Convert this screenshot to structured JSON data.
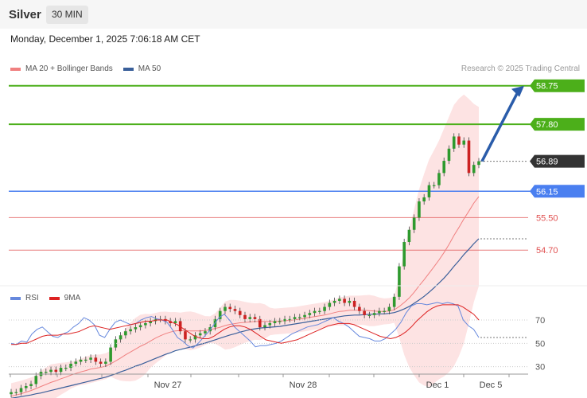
{
  "header": {
    "instrument": "Silver",
    "interval": "30 MIN"
  },
  "timestamp": "Monday, December 1, 2025 7:06:18 AM CET",
  "credit": "Research © 2025 Trading Central",
  "colors": {
    "ma20": "#f08080",
    "ma50": "#3a5f9a",
    "resistance": "#4caf1a",
    "pivot": "#4a7ff0",
    "support": "#e05050",
    "last": "#333333",
    "rsi": "#6688dd",
    "rsi_ma": "#dd2222",
    "bollinger": "#fde3e3",
    "candle_up": "#2e9a2e",
    "candle_down": "#cc2222",
    "forecast_arrow": "#2a5caa"
  },
  "chart_data": [
    {
      "type": "candlestick",
      "title": "Silver",
      "interval": "30 MIN",
      "legend": [
        {
          "name": "MA 20 + Bollinger Bands",
          "color": "#f08080"
        },
        {
          "name": "MA 50",
          "color": "#3a5f9a"
        }
      ],
      "legend_position": "top-left",
      "ylim": [
        53.9,
        59.0
      ],
      "x_ticks": [
        "Nov 27",
        "Nov 28",
        "Dec 1",
        "Dec 5"
      ],
      "levels": [
        {
          "label": "58.75",
          "value": 58.75,
          "kind": "resistance"
        },
        {
          "label": "57.80",
          "value": 57.8,
          "kind": "resistance"
        },
        {
          "label": "56.89",
          "value": 56.89,
          "kind": "last"
        },
        {
          "label": "56.15",
          "value": 56.15,
          "kind": "pivot"
        },
        {
          "label": "55.50",
          "value": 55.5,
          "kind": "support"
        },
        {
          "label": "54.70",
          "value": 54.7,
          "kind": "support"
        }
      ],
      "forecast": {
        "from": 56.89,
        "to": 58.75,
        "direction": "up"
      },
      "close_series": [
        51.2,
        51.2,
        51.3,
        51.35,
        51.4,
        51.6,
        51.7,
        51.7,
        51.75,
        51.7,
        51.8,
        51.8,
        51.9,
        51.95,
        52.0,
        52.0,
        52.05,
        51.95,
        51.9,
        51.95,
        52.3,
        52.5,
        52.6,
        52.7,
        52.75,
        52.8,
        52.85,
        52.9,
        52.95,
        53.0,
        53.0,
        52.95,
        52.9,
        52.95,
        52.7,
        52.5,
        52.5,
        52.6,
        52.65,
        52.7,
        52.8,
        53.0,
        53.2,
        53.3,
        53.25,
        53.2,
        53.1,
        53.0,
        53.05,
        53.0,
        52.8,
        52.85,
        52.9,
        52.95,
        52.95,
        53.0,
        53.0,
        53.05,
        53.05,
        53.1,
        53.15,
        53.2,
        53.2,
        53.3,
        53.4,
        53.45,
        53.5,
        53.4,
        53.45,
        53.3,
        53.2,
        53.1,
        53.1,
        53.15,
        53.2,
        53.2,
        53.3,
        53.55,
        54.3,
        54.9,
        55.2,
        55.5,
        55.9,
        56.0,
        56.3,
        56.3,
        56.6,
        56.9,
        57.2,
        57.5,
        57.3,
        57.4,
        56.6,
        56.8,
        56.89
      ],
      "ma20_series": [
        51.1,
        51.13,
        51.16,
        51.2,
        51.24,
        51.29,
        51.34,
        51.39,
        51.44,
        51.48,
        51.53,
        51.57,
        51.62,
        51.66,
        51.7,
        51.73,
        51.77,
        51.79,
        51.81,
        51.84,
        51.9,
        51.97,
        52.04,
        52.12,
        52.19,
        52.26,
        52.33,
        52.39,
        52.46,
        52.53,
        52.59,
        52.64,
        52.68,
        52.71,
        52.72,
        52.72,
        52.71,
        52.71,
        52.71,
        52.72,
        52.74,
        52.77,
        52.8,
        52.84,
        52.87,
        52.89,
        52.91,
        52.92,
        52.93,
        52.94,
        52.94,
        52.94,
        52.94,
        52.94,
        52.95,
        52.96,
        52.97,
        52.98,
        53.0,
        53.02,
        53.04,
        53.06,
        53.08,
        53.1,
        53.13,
        53.16,
        53.19,
        53.2,
        53.22,
        53.22,
        53.22,
        53.22,
        53.21,
        53.2,
        53.19,
        53.19,
        53.2,
        53.23,
        53.31,
        53.41,
        53.52,
        53.66,
        53.82,
        53.97,
        54.13,
        54.29,
        54.46,
        54.64,
        54.84,
        55.06,
        55.26,
        55.47,
        55.66,
        55.86,
        56.02
      ],
      "ma50_series": [
        51.05,
        51.07,
        51.09,
        51.11,
        51.13,
        51.16,
        51.18,
        51.21,
        51.24,
        51.27,
        51.3,
        51.33,
        51.36,
        51.39,
        51.42,
        51.45,
        51.48,
        51.51,
        51.54,
        51.57,
        51.61,
        51.65,
        51.7,
        51.74,
        51.79,
        51.84,
        51.88,
        51.93,
        51.98,
        52.03,
        52.08,
        52.13,
        52.17,
        52.22,
        52.25,
        52.28,
        52.31,
        52.34,
        52.38,
        52.41,
        52.45,
        52.49,
        52.53,
        52.57,
        52.61,
        52.64,
        52.68,
        52.71,
        52.74,
        52.76,
        52.78,
        52.79,
        52.8,
        52.81,
        52.82,
        52.84,
        52.86,
        52.88,
        52.9,
        52.92,
        52.94,
        52.96,
        52.98,
        53.0,
        53.02,
        53.04,
        53.06,
        53.08,
        53.09,
        53.1,
        53.1,
        53.11,
        53.12,
        53.12,
        53.13,
        53.13,
        53.14,
        53.16,
        53.2,
        53.25,
        53.31,
        53.39,
        53.47,
        53.56,
        53.66,
        53.77,
        53.89,
        54.01,
        54.15,
        54.3,
        54.44,
        54.59,
        54.72,
        54.86,
        54.98
      ]
    },
    {
      "type": "line",
      "legend": [
        {
          "name": "RSI",
          "color": "#6688dd"
        },
        {
          "name": "9MA",
          "color": "#dd2222"
        }
      ],
      "legend_position": "top-left",
      "ylim": [
        25,
        85
      ],
      "y_ticks": [
        "70",
        "50",
        "30"
      ],
      "series": [
        {
          "name": "RSI",
          "values": [
            50,
            49,
            52,
            51,
            58,
            62,
            64,
            60,
            56,
            55,
            58,
            60,
            64,
            67,
            72,
            70,
            66,
            57,
            55,
            62,
            68,
            70,
            68,
            66,
            67,
            70,
            72,
            73,
            71,
            70,
            68,
            62,
            55,
            52,
            48,
            46,
            50,
            55,
            60,
            66,
            72,
            75,
            70,
            64,
            60,
            56,
            52,
            47,
            48,
            48,
            49,
            50,
            52,
            55,
            58,
            60,
            62,
            64,
            65,
            66,
            68,
            70,
            72,
            69,
            67,
            64,
            60,
            56,
            55,
            54,
            52,
            52,
            54,
            58,
            62,
            68,
            76,
            82,
            84,
            84,
            83,
            84,
            85,
            84,
            85,
            84,
            82,
            70,
            65,
            62,
            55
          ]
        },
        {
          "name": "9MA",
          "values": [
            49,
            49,
            50,
            50,
            52,
            54,
            56,
            57,
            57,
            57,
            58,
            58,
            59,
            60,
            62,
            64,
            65,
            64,
            63,
            62,
            63,
            64,
            65,
            66,
            67,
            68,
            69,
            69,
            70,
            70,
            70,
            68,
            66,
            63,
            60,
            57,
            55,
            54,
            54,
            56,
            59,
            62,
            64,
            65,
            65,
            64,
            62,
            59,
            56,
            53,
            52,
            51,
            50,
            51,
            52,
            53,
            55,
            57,
            59,
            61,
            63,
            65,
            66,
            67,
            67,
            67,
            66,
            64,
            62,
            60,
            58,
            56,
            55,
            54,
            55,
            57,
            60,
            64,
            69,
            73,
            77,
            80,
            82,
            83,
            83,
            83,
            83,
            81,
            78,
            75,
            70
          ]
        }
      ]
    }
  ]
}
